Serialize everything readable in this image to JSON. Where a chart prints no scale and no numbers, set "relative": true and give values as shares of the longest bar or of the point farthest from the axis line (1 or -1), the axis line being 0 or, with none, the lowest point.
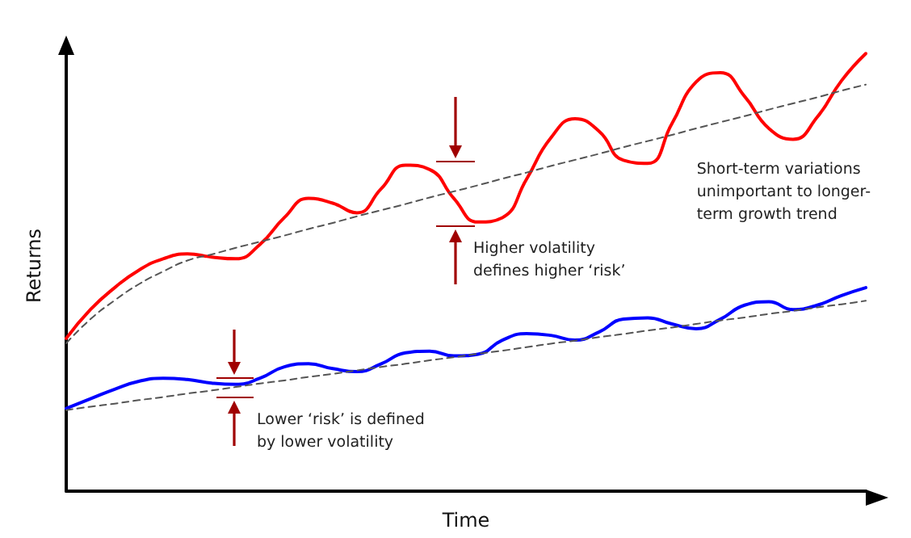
{
  "chart_data": {
    "type": "line",
    "relative": true,
    "xlabel": "Time",
    "ylabel": "Returns",
    "grid": false,
    "marker": "none",
    "categories": [
      null,
      null,
      null,
      null,
      null,
      null,
      null,
      null,
      null,
      null,
      null,
      null,
      null,
      null,
      null,
      null,
      null,
      null,
      null,
      null,
      null,
      null,
      null,
      null,
      null,
      null,
      null,
      null,
      null,
      null,
      null,
      null,
      null,
      null
    ],
    "series": [
      {
        "color": "#ff0000",
        "line_style": "solid",
        "values": [
          0.349,
          0.415,
          0.465,
          0.505,
          0.531,
          0.542,
          0.535,
          0.531,
          0.564,
          0.625,
          0.669,
          0.658,
          0.636,
          0.691,
          0.745,
          0.735,
          0.669,
          0.615,
          0.625,
          0.713,
          0.807,
          0.851,
          0.822,
          0.756,
          0.749,
          0.84,
          0.935,
          0.956,
          0.902,
          0.829,
          0.804,
          0.855,
          0.938,
          1
        ]
      },
      {
        "color": "#0000ff",
        "line_style": "solid",
        "values": [
          0.189,
          0.211,
          0.233,
          0.251,
          0.258,
          0.255,
          0.247,
          0.244,
          0.258,
          0.284,
          0.291,
          0.28,
          0.273,
          0.291,
          0.316,
          0.32,
          0.309,
          0.313,
          0.345,
          0.36,
          0.356,
          0.345,
          0.364,
          0.393,
          0.396,
          0.382,
          0.371,
          0.393,
          0.425,
          0.433,
          0.415,
          0.425,
          0.447,
          0.465
        ]
      },
      {
        "color": "#555555",
        "line_style": "dashed",
        "values": [
          0.338,
          0.393,
          0.436,
          0.473,
          0.502,
          0.527,
          0.541,
          0.556,
          0.57,
          0.584,
          0.599,
          0.613,
          0.628,
          0.642,
          0.656,
          0.671,
          0.685,
          0.699,
          0.714,
          0.728,
          0.743,
          0.757,
          0.771,
          0.786,
          0.8,
          0.814,
          0.829,
          0.843,
          0.857,
          0.872,
          0.886,
          0.9,
          0.915,
          0.929
        ]
      },
      {
        "color": "#555555",
        "line_style": "dashed",
        "values": [
          0.185,
          0.193,
          0.2,
          0.208,
          0.215,
          0.223,
          0.23,
          0.238,
          0.246,
          0.253,
          0.261,
          0.268,
          0.276,
          0.284,
          0.291,
          0.299,
          0.306,
          0.314,
          0.321,
          0.329,
          0.337,
          0.344,
          0.352,
          0.359,
          0.367,
          0.374,
          0.382,
          0.39,
          0.397,
          0.405,
          0.412,
          0.42,
          0.427,
          0.435
        ]
      }
    ],
    "annotations": [
      "Higher volatility\ndefines higher ‘risk’",
      "Lower ‘risk’ is defined\nby lower volatility",
      "Short-term variations\nunimportant to longer-\nterm growth trend"
    ]
  }
}
